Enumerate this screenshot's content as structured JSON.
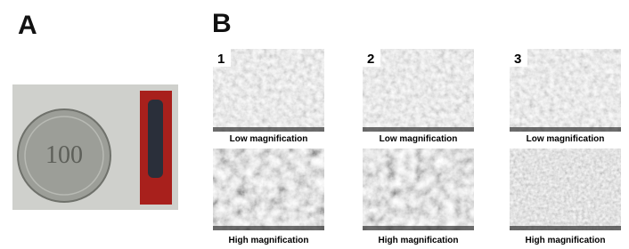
{
  "panel_a": {
    "label": "A",
    "coin_text": "100"
  },
  "panel_b": {
    "label": "B",
    "columns": [
      {
        "number": "1",
        "low_caption": "Low magnification",
        "high_caption": "High magnification"
      },
      {
        "number": "2",
        "low_caption": "Low magnification",
        "high_caption": "High magnification"
      },
      {
        "number": "3",
        "low_caption": "Low magnification",
        "high_caption": "High magnification"
      }
    ]
  }
}
